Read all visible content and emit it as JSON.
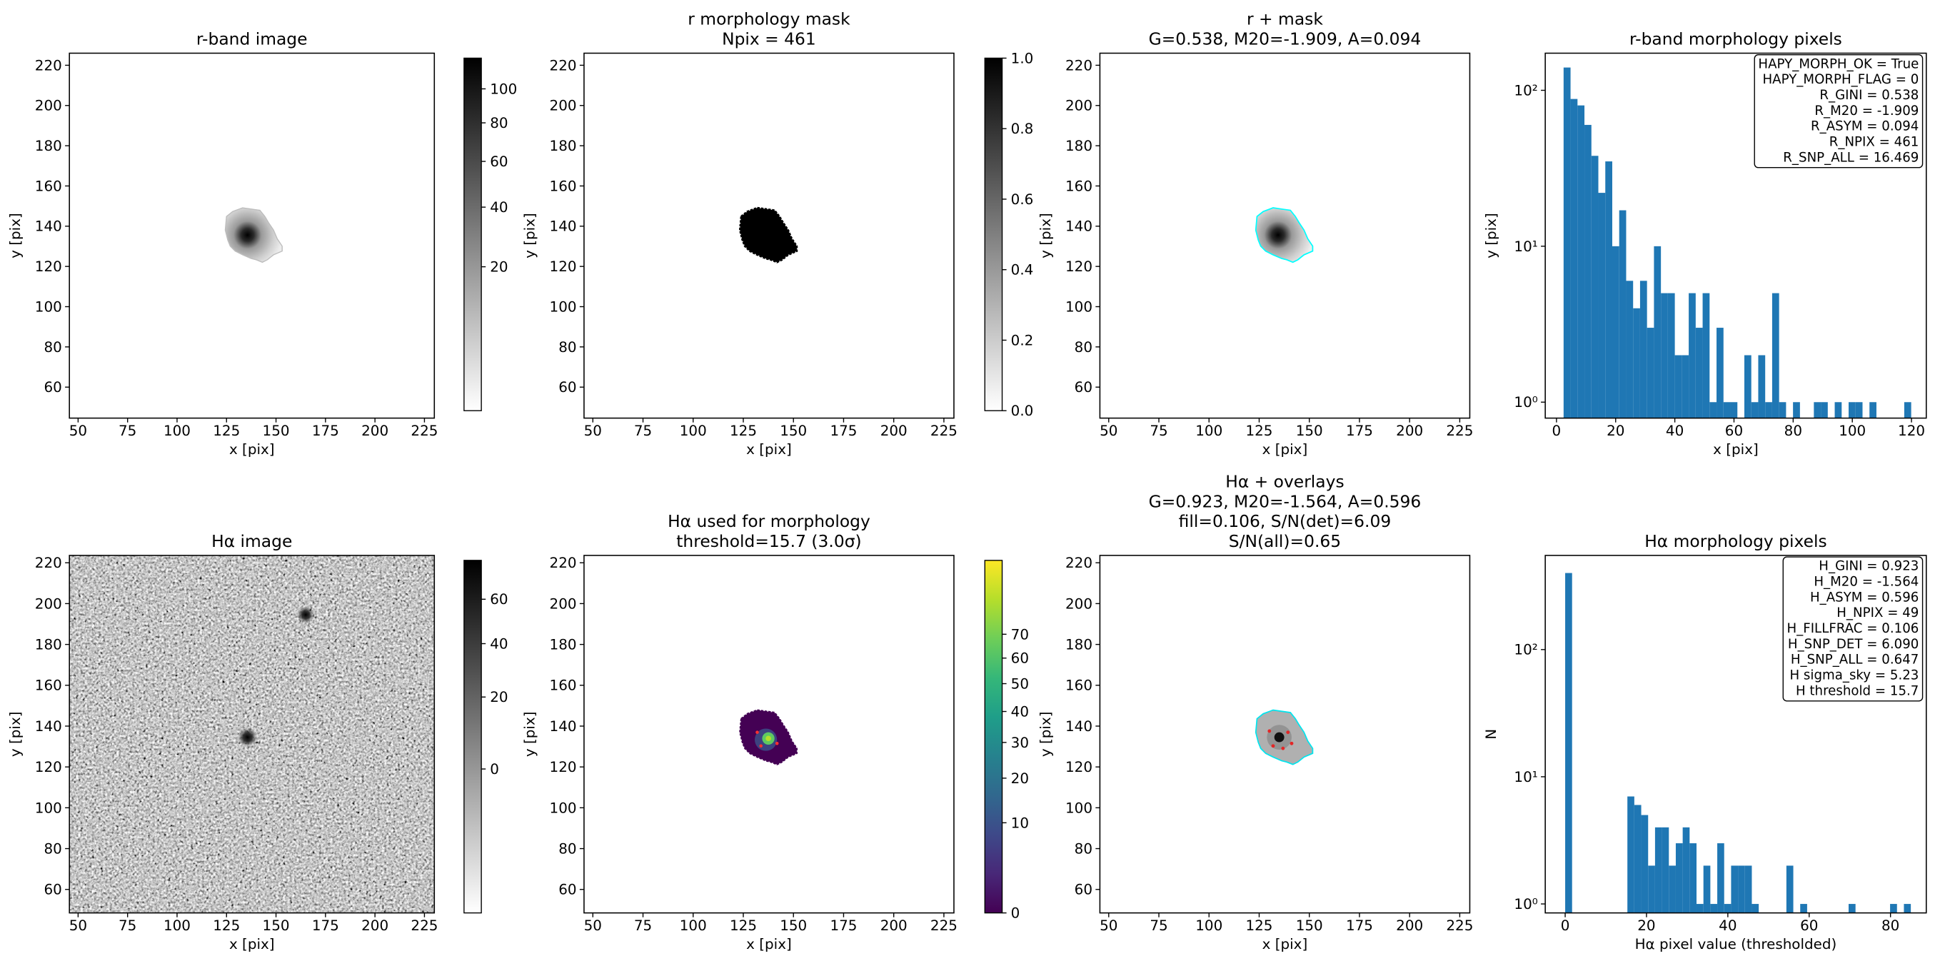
{
  "chart_data": [
    {
      "type": "image",
      "title": [
        "r-band image"
      ],
      "xlabel": "x [pix]",
      "ylabel": "y [pix]",
      "xlim": [
        45.6,
        230
      ],
      "ylim": [
        44.6,
        226
      ],
      "xticks": [
        50,
        75,
        100,
        125,
        150,
        175,
        200,
        225
      ],
      "yticks": [
        60,
        80,
        100,
        120,
        140,
        160,
        180,
        200,
        220
      ],
      "colorbar": {
        "scale": "sqrt",
        "ylim": [
          0,
          120
        ],
        "yticks": [
          20,
          40,
          60,
          80,
          100
        ],
        "colors": [
          "#ffffff",
          "#000000"
        ]
      }
    },
    {
      "type": "image",
      "title": [
        "r morphology mask",
        "Npix = 461"
      ],
      "xlabel": "x [pix]",
      "ylabel": "y [pix]",
      "xlim": [
        45.6,
        230
      ],
      "ylim": [
        44.6,
        226
      ],
      "xticks": [
        50,
        75,
        100,
        125,
        150,
        175,
        200,
        225
      ],
      "yticks": [
        60,
        80,
        100,
        120,
        140,
        160,
        180,
        200,
        220
      ],
      "colorbar": {
        "scale": "linear",
        "ylim": [
          0,
          1
        ],
        "yticks": [
          {
            "value": 0,
            "label": "0.0"
          },
          0.2,
          0.4,
          0.6,
          0.8,
          {
            "value": 1,
            "label": "1.0"
          }
        ],
        "colors": [
          "#ffffff",
          "#000000"
        ]
      }
    },
    {
      "type": "image",
      "title": [
        "r + mask",
        "G=0.538, M20=-1.909, A=0.094"
      ],
      "xlabel": "x [pix]",
      "ylabel": "y [pix]",
      "xlim": [
        45.6,
        230
      ],
      "ylim": [
        44.6,
        226
      ],
      "xticks": [
        50,
        75,
        100,
        125,
        150,
        175,
        200,
        225
      ],
      "yticks": [
        60,
        80,
        100,
        120,
        140,
        160,
        180,
        200,
        220
      ]
    },
    {
      "type": "histogram",
      "title": [
        "r-band morphology pixels"
      ],
      "xlabel": "x [pix]",
      "ylabel": "y [pix]",
      "log_y": true,
      "color": "#1f77b4",
      "xlim": [
        -3.8,
        125
      ],
      "ylim": [
        0.79,
        173
      ],
      "xticks": [
        0,
        20,
        40,
        60,
        80,
        100,
        120
      ],
      "yticks": [
        {
          "value": 1,
          "label": "10⁰"
        },
        {
          "value": 10,
          "label": "10¹"
        },
        {
          "value": 100,
          "label": "10²"
        }
      ],
      "bins": [
        2.4,
        4.75,
        7.1,
        9.45,
        11.8,
        14.15,
        16.5,
        18.85,
        21.2,
        23.55,
        25.9,
        28.25,
        30.6,
        32.95,
        35.3,
        37.65,
        40,
        42.35,
        44.7,
        47.05,
        49.4,
        51.75,
        54.1,
        56.45,
        58.8,
        61.15,
        63.5,
        65.85,
        68.2,
        70.55,
        72.9,
        75.25,
        77.6,
        79.95,
        82.3,
        84.65,
        87,
        89.35,
        91.7,
        94.05,
        96.4,
        98.75,
        101.1,
        103.45,
        105.8,
        108.15,
        110.5,
        112.85,
        115.2,
        117.55,
        119.9
      ],
      "values": [
        140,
        88,
        80,
        60,
        38,
        22,
        35,
        10,
        17,
        6,
        4,
        6,
        3,
        10,
        5,
        5,
        2,
        2,
        5,
        3,
        5,
        1,
        3,
        1,
        1,
        0,
        2,
        1,
        2,
        1,
        5,
        1,
        0,
        1,
        0,
        0,
        1,
        1,
        0,
        1,
        0,
        1,
        1,
        0,
        1,
        0,
        0,
        0,
        0,
        1
      ],
      "annotation": [
        "HAPY_MORPH_OK = True",
        "HAPY_MORPH_FLAG = 0",
        "R_GINI = 0.538",
        "R_M20 = -1.909",
        "R_ASYM = 0.094",
        "R_NPIX = 461",
        "R_SNP_ALL = 16.469"
      ]
    },
    {
      "type": "image",
      "title": [
        "Hα image"
      ],
      "xlabel": "x [pix]",
      "ylabel": "y [pix]",
      "xlim": [
        45.6,
        230
      ],
      "ylim": [
        48.5,
        223.6
      ],
      "xticks": [
        50,
        75,
        100,
        125,
        150,
        175,
        200,
        225
      ],
      "yticks": [
        60,
        80,
        100,
        120,
        140,
        160,
        180,
        200,
        220
      ],
      "colorbar": {
        "scale": "sqrt",
        "ylim": [
          -16,
          80
        ],
        "yticks": [
          0,
          20,
          40,
          60
        ],
        "colors": [
          "#ffffff",
          "#000000"
        ]
      }
    },
    {
      "type": "image",
      "title": [
        "Hα used for morphology",
        "threshold=15.7 (3.0σ)"
      ],
      "xlabel": "x [pix]",
      "ylabel": "y [pix]",
      "xlim": [
        45.6,
        230
      ],
      "ylim": [
        48.5,
        223.6
      ],
      "xticks": [
        50,
        75,
        100,
        125,
        150,
        175,
        200,
        225
      ],
      "yticks": [
        60,
        80,
        100,
        120,
        140,
        160,
        180,
        200,
        220
      ],
      "colorbar": {
        "scale": "power",
        "gamma": 0.58,
        "ylim": [
          0,
          105
        ],
        "yticks": [
          0,
          10,
          20,
          30,
          40,
          50,
          60,
          70
        ],
        "colors": [
          "#440154",
          "#482878",
          "#3e4989",
          "#31688e",
          "#26828e",
          "#1f9e89",
          "#35b779",
          "#6ece58",
          "#b5de2b",
          "#fde725"
        ]
      }
    },
    {
      "type": "image",
      "title": [
        "Hα + overlays",
        "G=0.923, M20=-1.564, A=0.596",
        "fill=0.106, S/N(det)=6.09",
        "S/N(all)=0.65"
      ],
      "xlabel": "x [pix]",
      "ylabel": "y [pix]",
      "xlim": [
        45.6,
        230
      ],
      "ylim": [
        48.5,
        223.6
      ],
      "xticks": [
        50,
        75,
        100,
        125,
        150,
        175,
        200,
        225
      ],
      "yticks": [
        60,
        80,
        100,
        120,
        140,
        160,
        180,
        200,
        220
      ]
    },
    {
      "type": "histogram",
      "title": [
        "Hα morphology pixels"
      ],
      "xlabel": "Hα pixel value (thresholded)",
      "ylabel": "N",
      "log_y": true,
      "color": "#1f77b4",
      "xlim": [
        -4.9,
        88.8
      ],
      "ylim": [
        0.85,
        550
      ],
      "xticks": [
        0,
        20,
        40,
        60,
        80
      ],
      "yticks": [
        {
          "value": 1,
          "label": "10⁰"
        },
        {
          "value": 10,
          "label": "10¹"
        },
        {
          "value": 100,
          "label": "10²"
        }
      ],
      "bins": [
        0,
        1.7,
        3.4,
        5.1,
        6.8,
        8.5,
        10.2,
        11.9,
        13.6,
        15.3,
        17,
        18.7,
        20.4,
        22.1,
        23.8,
        25.5,
        27.2,
        28.9,
        30.6,
        32.3,
        34,
        35.7,
        37.4,
        39.1,
        40.8,
        42.5,
        44.2,
        45.9,
        47.6,
        49.3,
        51,
        52.7,
        54.4,
        56.1,
        57.8,
        59.5,
        61.2,
        62.9,
        64.6,
        66.3,
        68,
        69.7,
        71.4,
        73.1,
        74.8,
        76.5,
        78.2,
        79.9,
        81.6,
        83.3,
        85
      ],
      "values": [
        400,
        0,
        0,
        0,
        0,
        0,
        0,
        0,
        0,
        7,
        6,
        5,
        2,
        4,
        4,
        2,
        3,
        4,
        3,
        1,
        2,
        1,
        3,
        1,
        2,
        2,
        2,
        1,
        0,
        0,
        0,
        0,
        2,
        0,
        1,
        0,
        0,
        0,
        0,
        0,
        0,
        1,
        0,
        0,
        0,
        0,
        0,
        1,
        0,
        1
      ],
      "annotation": [
        "H_GINI = 0.923",
        "H_M20 = -1.564",
        "H_ASYM = 0.596",
        "H_NPIX = 49",
        "H_FILLFRAC = 0.106",
        "H_SNP_DET = 6.090",
        "H_SNP_ALL = 0.647",
        "H sigma_sky = 5.23",
        "H threshold = 15.7"
      ]
    }
  ]
}
